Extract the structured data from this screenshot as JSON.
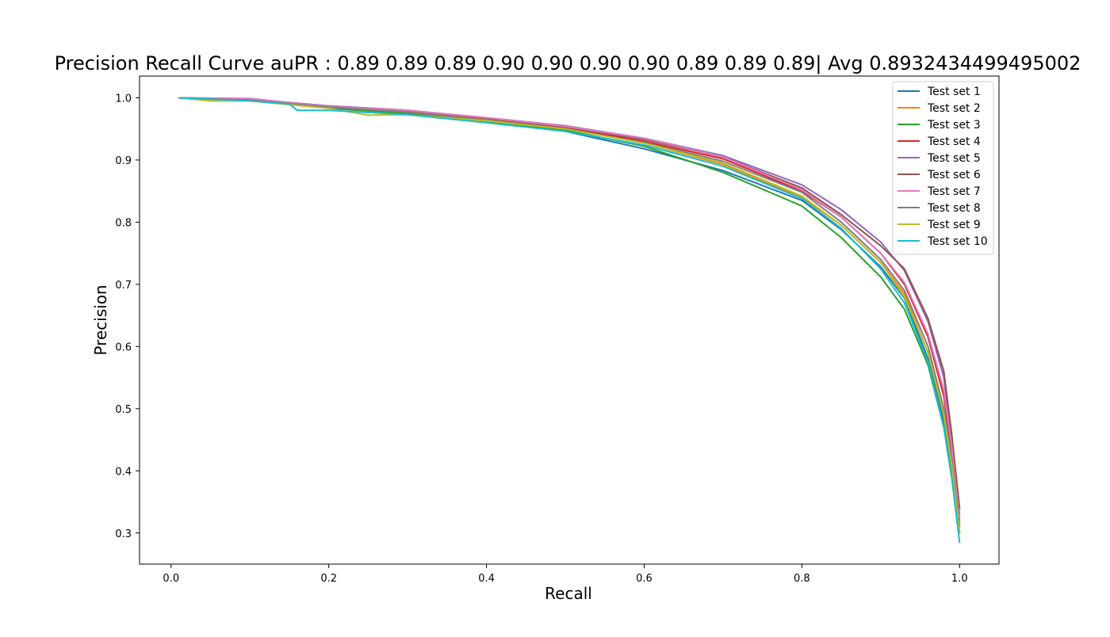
{
  "chart_data": {
    "type": "line",
    "title": "Precision Recall Curve auPR :  0.89 0.89 0.89 0.90 0.90 0.90 0.90 0.89 0.89 0.89| Avg 0.8932434499495002",
    "xlabel": "Recall",
    "ylabel": "Precision",
    "xlim": [
      -0.04,
      1.05
    ],
    "ylim": [
      0.25,
      1.035
    ],
    "xticks": [
      "0.0",
      "0.2",
      "0.4",
      "0.6",
      "0.8",
      "1.0"
    ],
    "yticks": [
      "0.3",
      "0.4",
      "0.5",
      "0.6",
      "0.7",
      "0.8",
      "0.9",
      "1.0"
    ],
    "grid": false,
    "legend_position": "top-right",
    "series": [
      {
        "name": "Test set 1",
        "color": "#1f77b4",
        "x": [
          0.01,
          0.1,
          0.2,
          0.3,
          0.4,
          0.5,
          0.6,
          0.7,
          0.8,
          0.85,
          0.9,
          0.93,
          0.96,
          0.98,
          0.99,
          1.0
        ],
        "y": [
          1.0,
          0.997,
          0.984,
          0.976,
          0.962,
          0.946,
          0.918,
          0.883,
          0.835,
          0.788,
          0.728,
          0.678,
          0.58,
          0.48,
          0.4,
          0.3
        ]
      },
      {
        "name": "Test set 2",
        "color": "#ff7f0e",
        "x": [
          0.01,
          0.1,
          0.2,
          0.3,
          0.4,
          0.5,
          0.6,
          0.7,
          0.8,
          0.85,
          0.9,
          0.93,
          0.96,
          0.98,
          0.99,
          1.0
        ],
        "y": [
          1.0,
          0.996,
          0.985,
          0.978,
          0.965,
          0.952,
          0.927,
          0.893,
          0.84,
          0.795,
          0.735,
          0.685,
          0.59,
          0.49,
          0.41,
          0.31
        ]
      },
      {
        "name": "Test set 3",
        "color": "#2ca02c",
        "x": [
          0.01,
          0.1,
          0.2,
          0.3,
          0.4,
          0.5,
          0.6,
          0.7,
          0.8,
          0.85,
          0.9,
          0.93,
          0.96,
          0.98,
          0.99,
          1.0
        ],
        "y": [
          1.0,
          0.997,
          0.983,
          0.975,
          0.962,
          0.948,
          0.922,
          0.88,
          0.826,
          0.775,
          0.712,
          0.66,
          0.57,
          0.47,
          0.39,
          0.3
        ]
      },
      {
        "name": "Test set 4",
        "color": "#d62728",
        "x": [
          0.01,
          0.1,
          0.2,
          0.3,
          0.4,
          0.5,
          0.6,
          0.7,
          0.8,
          0.85,
          0.9,
          0.93,
          0.96,
          0.98,
          0.99,
          1.0
        ],
        "y": [
          1.0,
          0.998,
          0.987,
          0.98,
          0.967,
          0.952,
          0.93,
          0.902,
          0.85,
          0.808,
          0.75,
          0.7,
          0.615,
          0.52,
          0.43,
          0.32
        ]
      },
      {
        "name": "Test set 5",
        "color": "#9467bd",
        "x": [
          0.01,
          0.1,
          0.2,
          0.3,
          0.4,
          0.5,
          0.6,
          0.7,
          0.8,
          0.85,
          0.9,
          0.93,
          0.96,
          0.98,
          0.99,
          1.0
        ],
        "y": [
          1.0,
          0.998,
          0.987,
          0.98,
          0.968,
          0.955,
          0.935,
          0.907,
          0.86,
          0.82,
          0.768,
          0.722,
          0.64,
          0.55,
          0.45,
          0.33
        ]
      },
      {
        "name": "Test set 6",
        "color": "#8c564b",
        "x": [
          0.01,
          0.1,
          0.2,
          0.3,
          0.4,
          0.5,
          0.6,
          0.7,
          0.8,
          0.85,
          0.9,
          0.93,
          0.96,
          0.98,
          0.99,
          1.0
        ],
        "y": [
          1.0,
          0.997,
          0.986,
          0.98,
          0.967,
          0.953,
          0.933,
          0.905,
          0.855,
          0.812,
          0.762,
          0.725,
          0.645,
          0.56,
          0.46,
          0.34
        ]
      },
      {
        "name": "Test set 7",
        "color": "#e377c2",
        "x": [
          0.01,
          0.1,
          0.2,
          0.3,
          0.4,
          0.5,
          0.6,
          0.7,
          0.8,
          0.85,
          0.9,
          0.93,
          0.96,
          0.98,
          0.99,
          1.0
        ],
        "y": [
          1.0,
          0.999,
          0.986,
          0.98,
          0.968,
          0.954,
          0.935,
          0.905,
          0.852,
          0.808,
          0.75,
          0.703,
          0.62,
          0.53,
          0.44,
          0.32
        ]
      },
      {
        "name": "Test set 8",
        "color": "#7f7f7f",
        "x": [
          0.01,
          0.1,
          0.2,
          0.3,
          0.4,
          0.5,
          0.6,
          0.7,
          0.8,
          0.85,
          0.9,
          0.93,
          0.96,
          0.98,
          0.99,
          1.0
        ],
        "y": [
          1.0,
          0.996,
          0.985,
          0.977,
          0.964,
          0.95,
          0.928,
          0.898,
          0.848,
          0.8,
          0.74,
          0.69,
          0.6,
          0.5,
          0.42,
          0.31
        ]
      },
      {
        "name": "Test set 9",
        "color": "#bcbd22",
        "x": [
          0.01,
          0.05,
          0.1,
          0.2,
          0.25,
          0.3,
          0.4,
          0.5,
          0.6,
          0.7,
          0.8,
          0.85,
          0.9,
          0.93,
          0.96,
          0.98,
          0.99,
          1.0
        ],
        "y": [
          1.0,
          0.995,
          0.995,
          0.983,
          0.972,
          0.973,
          0.963,
          0.95,
          0.927,
          0.895,
          0.842,
          0.795,
          0.735,
          0.68,
          0.59,
          0.49,
          0.41,
          0.3
        ]
      },
      {
        "name": "Test set 10",
        "color": "#17becf",
        "x": [
          0.01,
          0.1,
          0.15,
          0.16,
          0.2,
          0.3,
          0.4,
          0.5,
          0.6,
          0.7,
          0.8,
          0.85,
          0.9,
          0.93,
          0.96,
          0.98,
          0.99,
          1.0
        ],
        "y": [
          1.0,
          0.995,
          0.99,
          0.98,
          0.98,
          0.973,
          0.96,
          0.946,
          0.924,
          0.89,
          0.838,
          0.79,
          0.725,
          0.67,
          0.575,
          0.47,
          0.39,
          0.285
        ]
      }
    ]
  }
}
